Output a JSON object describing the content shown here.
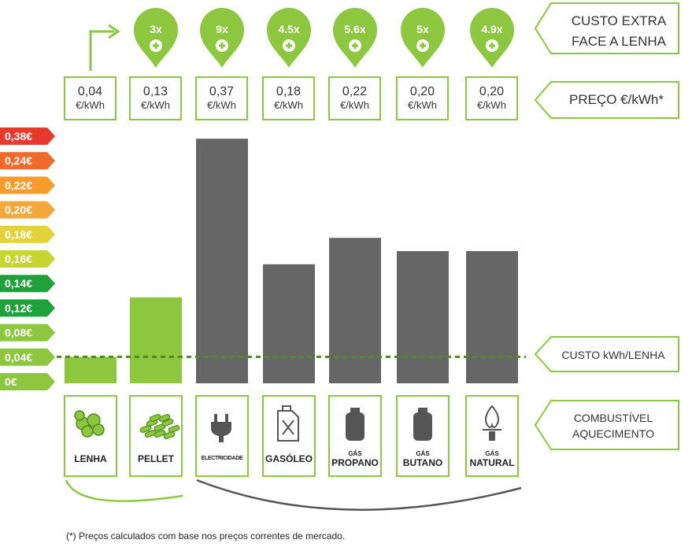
{
  "chart_data": {
    "type": "bar",
    "categories": [
      "LENHA",
      "PELLET",
      "ELECTRICIDADE",
      "GASÓLEO",
      "GÁS PROPANO",
      "GÁS BUTANO",
      "GÁS NATURAL"
    ],
    "values": [
      0.04,
      0.13,
      0.37,
      0.18,
      0.22,
      0.2,
      0.2
    ],
    "price_labels": [
      "0,04",
      "0,13",
      "0,37",
      "0,18",
      "0,22",
      "0,20",
      "0,20"
    ],
    "unit": "€/kWh",
    "multipliers": [
      "",
      "3x",
      "9x",
      "4.5x",
      "5.6x",
      "5x",
      "4.9x"
    ],
    "bar_colors": [
      "#8dc63f",
      "#8dc63f",
      "#666666",
      "#666666",
      "#666666",
      "#666666",
      "#666666"
    ],
    "reference_line": {
      "value": 0.04,
      "label": "CUSTO kWh/LENHA"
    },
    "scale_labels": [
      "0,38€",
      "0,24€",
      "0,22€",
      "0,20€",
      "0,18€",
      "0,16€",
      "0,14€",
      "0,12€",
      "0,08€",
      "0,04€",
      "0€"
    ],
    "scale_colors": [
      "#e8392f",
      "#ef6a2d",
      "#f59c2a",
      "#f4a83a",
      "#e4d23a",
      "#c8d530",
      "#1fa23c",
      "#1fa23c",
      "#8dc63f",
      "#8dc63f",
      "#8dc63f"
    ],
    "legend_right": {
      "custo_extra": [
        "CUSTO EXTRA",
        "FACE A LENHA"
      ],
      "preco": "PREÇO €/kWh*",
      "combustivel": [
        "COMBUSTÍVEL",
        "AQUECIMENTO"
      ]
    },
    "fuel_labels": [
      {
        "line1": "",
        "line2": "LENHA",
        "icon": "firewood-icon"
      },
      {
        "line1": "",
        "line2": "PELLET",
        "icon": "pellet-icon"
      },
      {
        "line1": "",
        "line2": "ELECTRICIDADE",
        "icon": "electric-plug-icon"
      },
      {
        "line1": "",
        "line2": "GASÓLEO",
        "icon": "jerrycan-icon"
      },
      {
        "line1": "GÁS",
        "line2": "PROPANO",
        "icon": "gas-cylinder-icon"
      },
      {
        "line1": "GÁS",
        "line2": "BUTANO",
        "icon": "gas-cylinder-icon"
      },
      {
        "line1": "GÁS",
        "line2": "NATURAL",
        "icon": "flame-icon"
      }
    ],
    "footnote": "(*) Preços calculados com base nos preços correntes de mercado."
  }
}
